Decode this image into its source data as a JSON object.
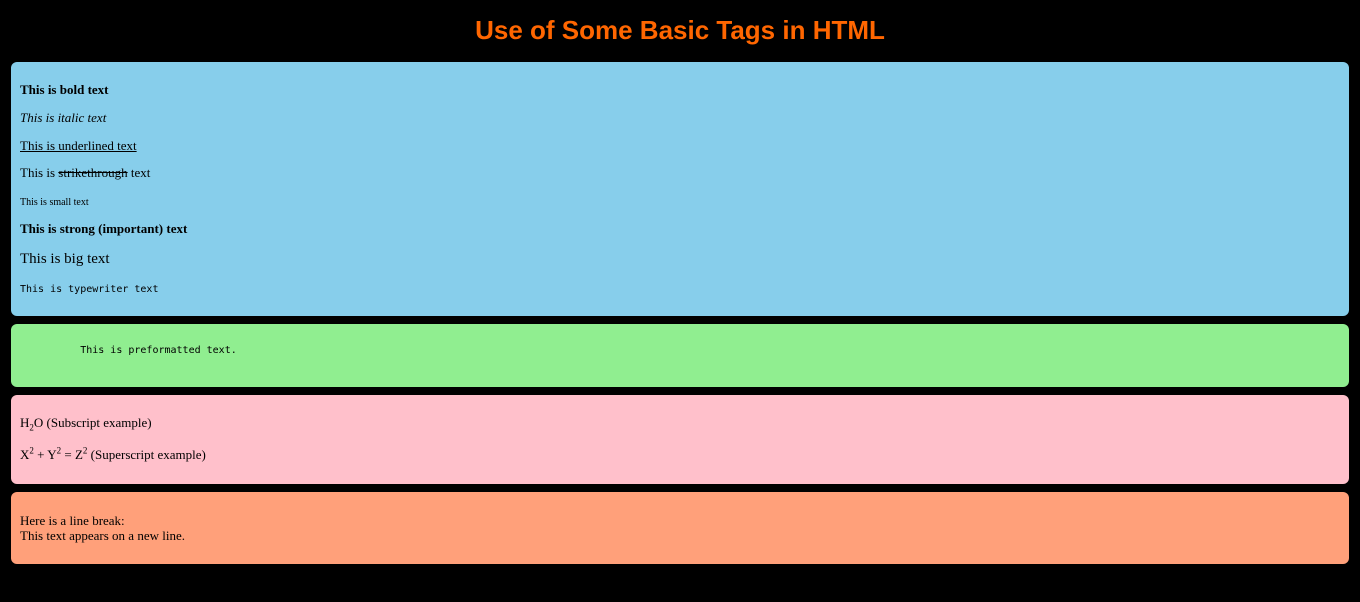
{
  "page": {
    "title": "Use of Some Basic Tags in HTML",
    "colors": {
      "background": "#000000",
      "title": "#ff6600",
      "box_formatting": "#87ceeb",
      "box_preformatted": "#90ee90",
      "box_sub_sup": "#ffc0cb",
      "box_line_break": "#ffa07a"
    }
  },
  "formatting": {
    "bold": "This is bold text",
    "italic": "This is italic text",
    "underlined": "This is underlined text",
    "strike_prefix": "This is ",
    "strike_word": "strikethrough",
    "strike_suffix": " text",
    "small": "This is small text",
    "strong": "This is strong (important) text",
    "big": "This is big text",
    "typewriter": "This is typewriter text"
  },
  "preformatted": {
    "text": "          This is preformatted text."
  },
  "sub_sup": {
    "sub_before": "H",
    "sub_digit": "2",
    "sub_after": "O",
    "sub_label": " (Subscript example)",
    "sup_x": "X",
    "sup_x_exp": "2",
    "sup_plus": " + Y",
    "sup_y_exp": "2",
    "sup_eq": " = Z",
    "sup_z_exp": "2",
    "sup_label": " (Superscript example)"
  },
  "line_break": {
    "line1": "Here is a line break:",
    "line2": "This text appears on a new line."
  }
}
